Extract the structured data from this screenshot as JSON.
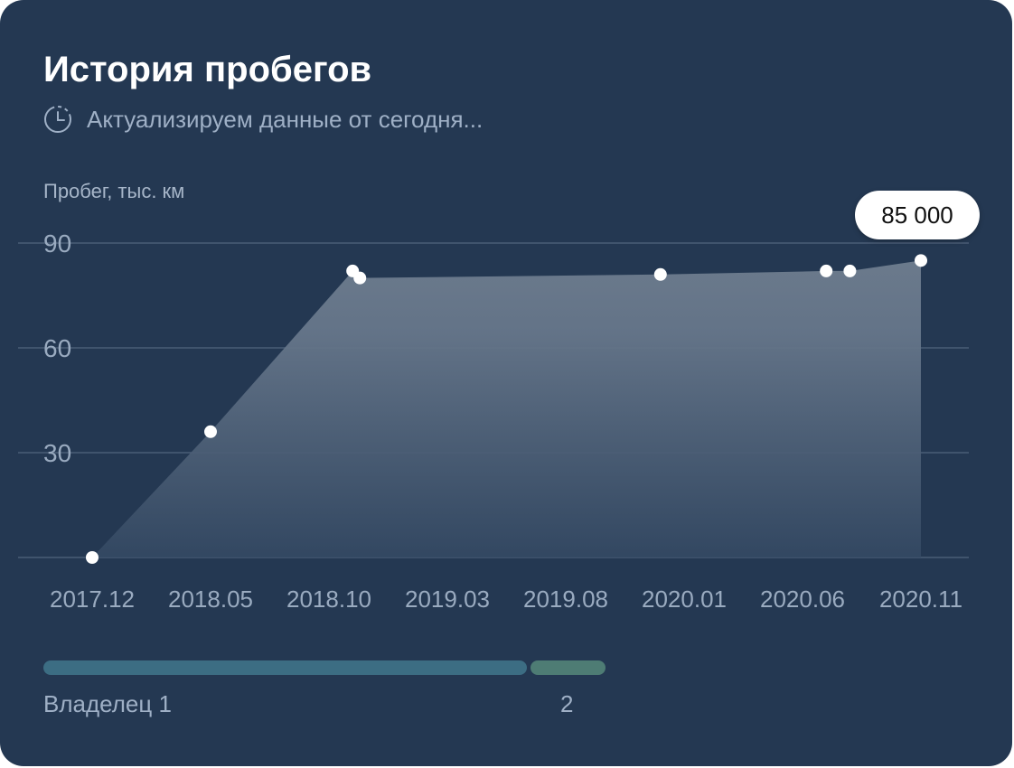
{
  "header": {
    "title": "История пробегов",
    "subtitle": "Актуализируем данные от сегодня...",
    "status_icon": "clock-icon"
  },
  "colors": {
    "background": "#243852",
    "area_fill": "#6b7a8c",
    "point": "#ffffff",
    "owner_1": "#3c6d83",
    "owner_2": "#4e7c74",
    "gridline": "#4a5d76",
    "tick_text": "#9aabc0"
  },
  "chart_data": {
    "type": "area",
    "ylabel": "Пробег, тыс. км",
    "ylim": [
      0,
      90
    ],
    "yticks": [
      "90",
      "60",
      "30"
    ],
    "xticks": [
      "2017.12",
      "2018.05",
      "2018.10",
      "2019.03",
      "2019.08",
      "2020.01",
      "2020.06",
      "2020.11"
    ],
    "grid": true,
    "points": [
      {
        "date": "2017.12",
        "value": 0
      },
      {
        "date": "2018.05",
        "value": 36
      },
      {
        "date": "2018.11",
        "value": 82
      },
      {
        "date": "2018.11",
        "value": 80
      },
      {
        "date": "2019.12",
        "value": 81
      },
      {
        "date": "2020.07",
        "value": 82
      },
      {
        "date": "2020.08",
        "value": 82
      },
      {
        "date": "2020.11",
        "value": 85
      }
    ],
    "highlight": {
      "label": "85 000",
      "value": 85000,
      "unit": "км"
    }
  },
  "owners": [
    {
      "label": "Владелец 1",
      "share": 0.865
    },
    {
      "label": "2",
      "share": 0.135
    }
  ]
}
